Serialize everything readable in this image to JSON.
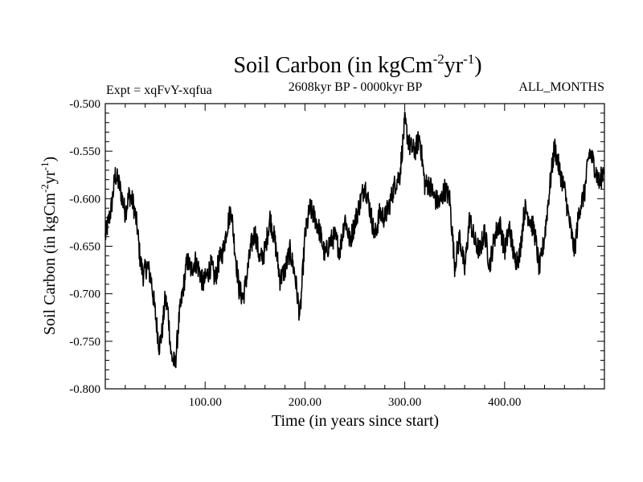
{
  "chart_data": {
    "type": "line",
    "title_main": "Soil Carbon (in kgCm",
    "title_exp1": "-2",
    "title_mid": "yr",
    "title_exp2": "-1",
    "title_close": ")",
    "subtitle": "2608kyr BP - 0000kyr BP",
    "left_label": "Expt = xqFvY-xqfua",
    "right_label": "ALL_MONTHS",
    "xlabel": "Time (in years since start)",
    "ylabel_main": "Soil Carbon (in kgCm",
    "ylabel_exp1": "-2",
    "ylabel_mid": "yr",
    "ylabel_exp2": "-1",
    "ylabel_close": ")",
    "xlim": [
      0,
      500
    ],
    "ylim": [
      -0.8,
      -0.5
    ],
    "x_ticks": [
      100,
      200,
      300,
      400
    ],
    "x_tick_labels": [
      "100.00",
      "200.00",
      "300.00",
      "400.00"
    ],
    "y_ticks": [
      -0.5,
      -0.55,
      -0.6,
      -0.65,
      -0.7,
      -0.75,
      -0.8
    ],
    "y_tick_labels": [
      "-0.500",
      "-0.550",
      "-0.600",
      "-0.650",
      "-0.700",
      "-0.750",
      "-0.800"
    ],
    "series": [
      {
        "name": "Soil Carbon",
        "color": "#000000",
        "anchors_x": [
          0,
          3,
          6,
          10,
          14,
          17,
          20,
          24,
          28,
          32,
          35,
          38,
          42,
          46,
          50,
          54,
          57,
          60,
          63,
          66,
          70,
          74,
          78,
          82,
          86,
          90,
          94,
          98,
          102,
          106,
          110,
          114,
          118,
          122,
          126,
          130,
          134,
          138,
          142,
          146,
          150,
          155,
          160,
          165,
          170,
          175,
          180,
          185,
          190,
          195,
          200,
          205,
          210,
          215,
          220,
          225,
          230,
          235,
          240,
          245,
          250,
          255,
          260,
          265,
          270,
          275,
          280,
          285,
          290,
          295,
          300,
          305,
          310,
          315,
          320,
          325,
          330,
          335,
          340,
          345,
          350,
          355,
          360,
          365,
          370,
          375,
          380,
          385,
          390,
          395,
          400,
          405,
          410,
          415,
          420,
          425,
          430,
          435,
          440,
          445,
          450,
          455,
          460,
          465,
          470,
          475,
          480,
          485,
          490,
          495,
          500
        ],
        "anchors_y": [
          -0.64,
          -0.625,
          -0.61,
          -0.575,
          -0.585,
          -0.6,
          -0.615,
          -0.595,
          -0.605,
          -0.63,
          -0.665,
          -0.68,
          -0.67,
          -0.685,
          -0.72,
          -0.755,
          -0.74,
          -0.705,
          -0.72,
          -0.765,
          -0.775,
          -0.725,
          -0.695,
          -0.665,
          -0.675,
          -0.665,
          -0.675,
          -0.69,
          -0.68,
          -0.67,
          -0.685,
          -0.665,
          -0.655,
          -0.63,
          -0.61,
          -0.655,
          -0.695,
          -0.705,
          -0.68,
          -0.65,
          -0.635,
          -0.665,
          -0.655,
          -0.62,
          -0.645,
          -0.685,
          -0.675,
          -0.655,
          -0.68,
          -0.725,
          -0.64,
          -0.61,
          -0.62,
          -0.635,
          -0.66,
          -0.645,
          -0.64,
          -0.655,
          -0.62,
          -0.645,
          -0.625,
          -0.605,
          -0.585,
          -0.61,
          -0.64,
          -0.615,
          -0.62,
          -0.605,
          -0.585,
          -0.575,
          -0.52,
          -0.545,
          -0.55,
          -0.535,
          -0.585,
          -0.585,
          -0.6,
          -0.605,
          -0.59,
          -0.6,
          -0.67,
          -0.64,
          -0.675,
          -0.62,
          -0.645,
          -0.655,
          -0.635,
          -0.67,
          -0.64,
          -0.625,
          -0.655,
          -0.63,
          -0.665,
          -0.66,
          -0.61,
          -0.62,
          -0.635,
          -0.675,
          -0.64,
          -0.59,
          -0.545,
          -0.57,
          -0.59,
          -0.625,
          -0.655,
          -0.61,
          -0.595,
          -0.55,
          -0.565,
          -0.585,
          -0.565
        ]
      }
    ]
  }
}
